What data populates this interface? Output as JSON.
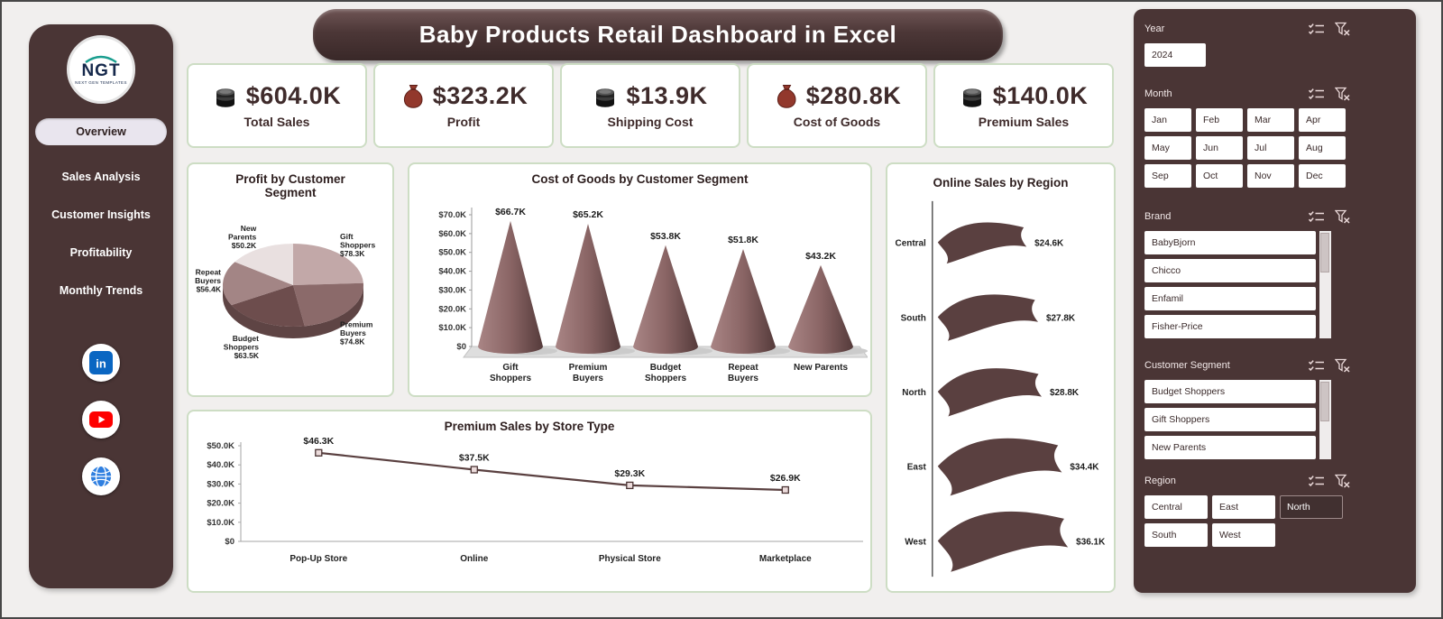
{
  "window": {
    "title": "Baby Products Retail Dashboard in Excel"
  },
  "colors": {
    "panel_brown": "#4a3535",
    "accent_border": "#cdddc4",
    "chart_brown": "#5a4040",
    "text_dark": "#3f2b2b",
    "pie_depth": "#5e4444"
  },
  "sidebar": {
    "logo": {
      "text": "NGT",
      "subtext": "NEXT GEN TEMPLATES"
    },
    "nav": [
      {
        "label": "Overview",
        "active": true
      },
      {
        "label": "Sales Analysis",
        "active": false
      },
      {
        "label": "Customer Insights",
        "active": false
      },
      {
        "label": "Profitability",
        "active": false
      },
      {
        "label": "Monthly Trends",
        "active": false
      }
    ],
    "social": [
      {
        "name": "linkedin"
      },
      {
        "name": "youtube"
      },
      {
        "name": "website"
      }
    ]
  },
  "kpis": [
    {
      "icon": "coins",
      "value": "$604.0K",
      "label": "Total Sales"
    },
    {
      "icon": "moneybag",
      "value": "$323.2K",
      "label": "Profit"
    },
    {
      "icon": "coins",
      "value": "$13.9K",
      "label": "Shipping Cost"
    },
    {
      "icon": "moneybag",
      "value": "$280.8K",
      "label": "Cost of Goods"
    },
    {
      "icon": "coins",
      "value": "$140.0K",
      "label": "Premium Sales"
    }
  ],
  "chart_data": [
    {
      "id": "profit_pie",
      "type": "pie",
      "title": "Profit by Customer Segment",
      "labels": [
        "Gift Shoppers",
        "Premium Buyers",
        "Budget Shoppers",
        "Repeat Buyers",
        "New Parents"
      ],
      "values": [
        78.3,
        74.8,
        63.5,
        56.4,
        50.2
      ],
      "value_labels": [
        "$78.3K",
        "$74.8K",
        "$63.5K",
        "$56.4K",
        "$50.2K"
      ],
      "colors": [
        "#c2a8a8",
        "#8b6a6a",
        "#6d4d4d",
        "#a38585",
        "#e9e0e0"
      ],
      "start_angle_deg": 0,
      "legend": "none",
      "style": "3d"
    },
    {
      "id": "cogs_cones",
      "type": "bar",
      "subtype": "cone-3d",
      "title": "Cost of Goods by Customer Segment",
      "categories": [
        "Gift Shoppers",
        "Premium Buyers",
        "Budget Shoppers",
        "Repeat Buyers",
        "New Parents"
      ],
      "values": [
        66.7,
        65.2,
        53.8,
        51.8,
        43.2
      ],
      "value_labels": [
        "$66.7K",
        "$65.2K",
        "$53.8K",
        "$51.8K",
        "$43.2K"
      ],
      "ylim": [
        0,
        70
      ],
      "yticks": [
        "$0",
        "$10.0K",
        "$20.0K",
        "$30.0K",
        "$40.0K",
        "$50.0K",
        "$60.0K",
        "$70.0K"
      ],
      "grid": false
    },
    {
      "id": "premium_line",
      "type": "line",
      "title": "Premium Sales by Store Type",
      "categories": [
        "Pop-Up Store",
        "Online",
        "Physical Store",
        "Marketplace"
      ],
      "values": [
        46.3,
        37.5,
        29.3,
        26.9
      ],
      "value_labels": [
        "$46.3K",
        "$37.5K",
        "$29.3K",
        "$26.9K"
      ],
      "ylim": [
        0,
        50
      ],
      "yticks": [
        "$0",
        "$10.0K",
        "$20.0K",
        "$30.0K",
        "$40.0K",
        "$50.0K"
      ],
      "marker": "square",
      "grid": false
    },
    {
      "id": "online_sales_region",
      "type": "funnel",
      "subtype": "wave-shapes",
      "title": "Online Sales by Region",
      "categories": [
        "Central",
        "South",
        "North",
        "East",
        "West"
      ],
      "values": [
        24.6,
        27.8,
        28.8,
        34.4,
        36.1
      ],
      "value_labels": [
        "$24.6K",
        "$27.8K",
        "$28.8K",
        "$34.4K",
        "$36.1K"
      ]
    }
  ],
  "slicers": [
    {
      "label": "Year",
      "layout": "grid",
      "columns": 1,
      "items": [
        {
          "label": "2024"
        }
      ]
    },
    {
      "label": "Month",
      "layout": "grid",
      "columns": 4,
      "items": [
        {
          "label": "Jan"
        },
        {
          "label": "Feb"
        },
        {
          "label": "Mar"
        },
        {
          "label": "Apr"
        },
        {
          "label": "May"
        },
        {
          "label": "Jun"
        },
        {
          "label": "Jul"
        },
        {
          "label": "Aug"
        },
        {
          "label": "Sep"
        },
        {
          "label": "Oct"
        },
        {
          "label": "Nov"
        },
        {
          "label": "Dec"
        }
      ]
    },
    {
      "label": "Brand",
      "layout": "list",
      "scrollbar": true,
      "items": [
        {
          "label": "BabyBjorn"
        },
        {
          "label": "Chicco"
        },
        {
          "label": "Enfamil"
        },
        {
          "label": "Fisher-Price"
        }
      ]
    },
    {
      "label": "Customer Segment",
      "layout": "list",
      "scrollbar": true,
      "items": [
        {
          "label": "Budget Shoppers"
        },
        {
          "label": "Gift Shoppers"
        },
        {
          "label": "New Parents"
        }
      ]
    },
    {
      "label": "Region",
      "layout": "grid",
      "columns": 3,
      "items": [
        {
          "label": "Central"
        },
        {
          "label": "East"
        },
        {
          "label": "North",
          "variant": "dark"
        },
        {
          "label": "South"
        },
        {
          "label": "West"
        }
      ]
    }
  ]
}
